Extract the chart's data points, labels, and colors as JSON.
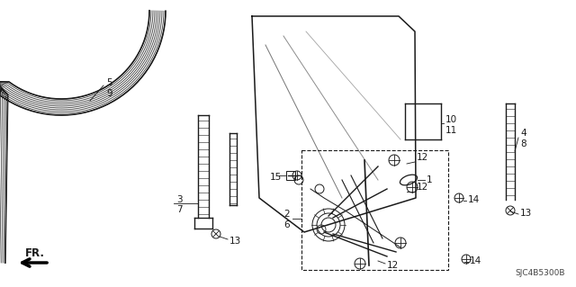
{
  "bg_color": "#ffffff",
  "line_color": "#1a1a1a",
  "label_color": "#1a1a1a",
  "diagram_code": "SJC4B5300B",
  "figsize": [
    6.4,
    3.19
  ],
  "dpi": 100
}
